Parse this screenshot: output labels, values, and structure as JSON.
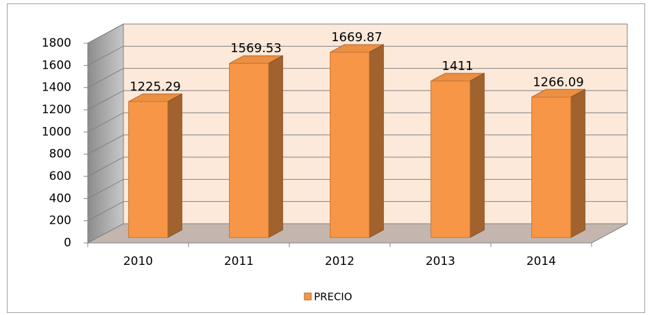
{
  "chart_data": {
    "type": "bar",
    "categories": [
      "2010",
      "2011",
      "2012",
      "2013",
      "2014"
    ],
    "series": [
      {
        "name": "PRECIO",
        "color": "#f79646",
        "values": [
          1225.29,
          1569.53,
          1669.87,
          1411,
          1266.09
        ]
      }
    ],
    "ylim": [
      0,
      1800
    ],
    "yticks": [
      0,
      200,
      400,
      600,
      800,
      1000,
      1200,
      1400,
      1600,
      1800
    ],
    "grid": true,
    "legend": "bottom"
  }
}
